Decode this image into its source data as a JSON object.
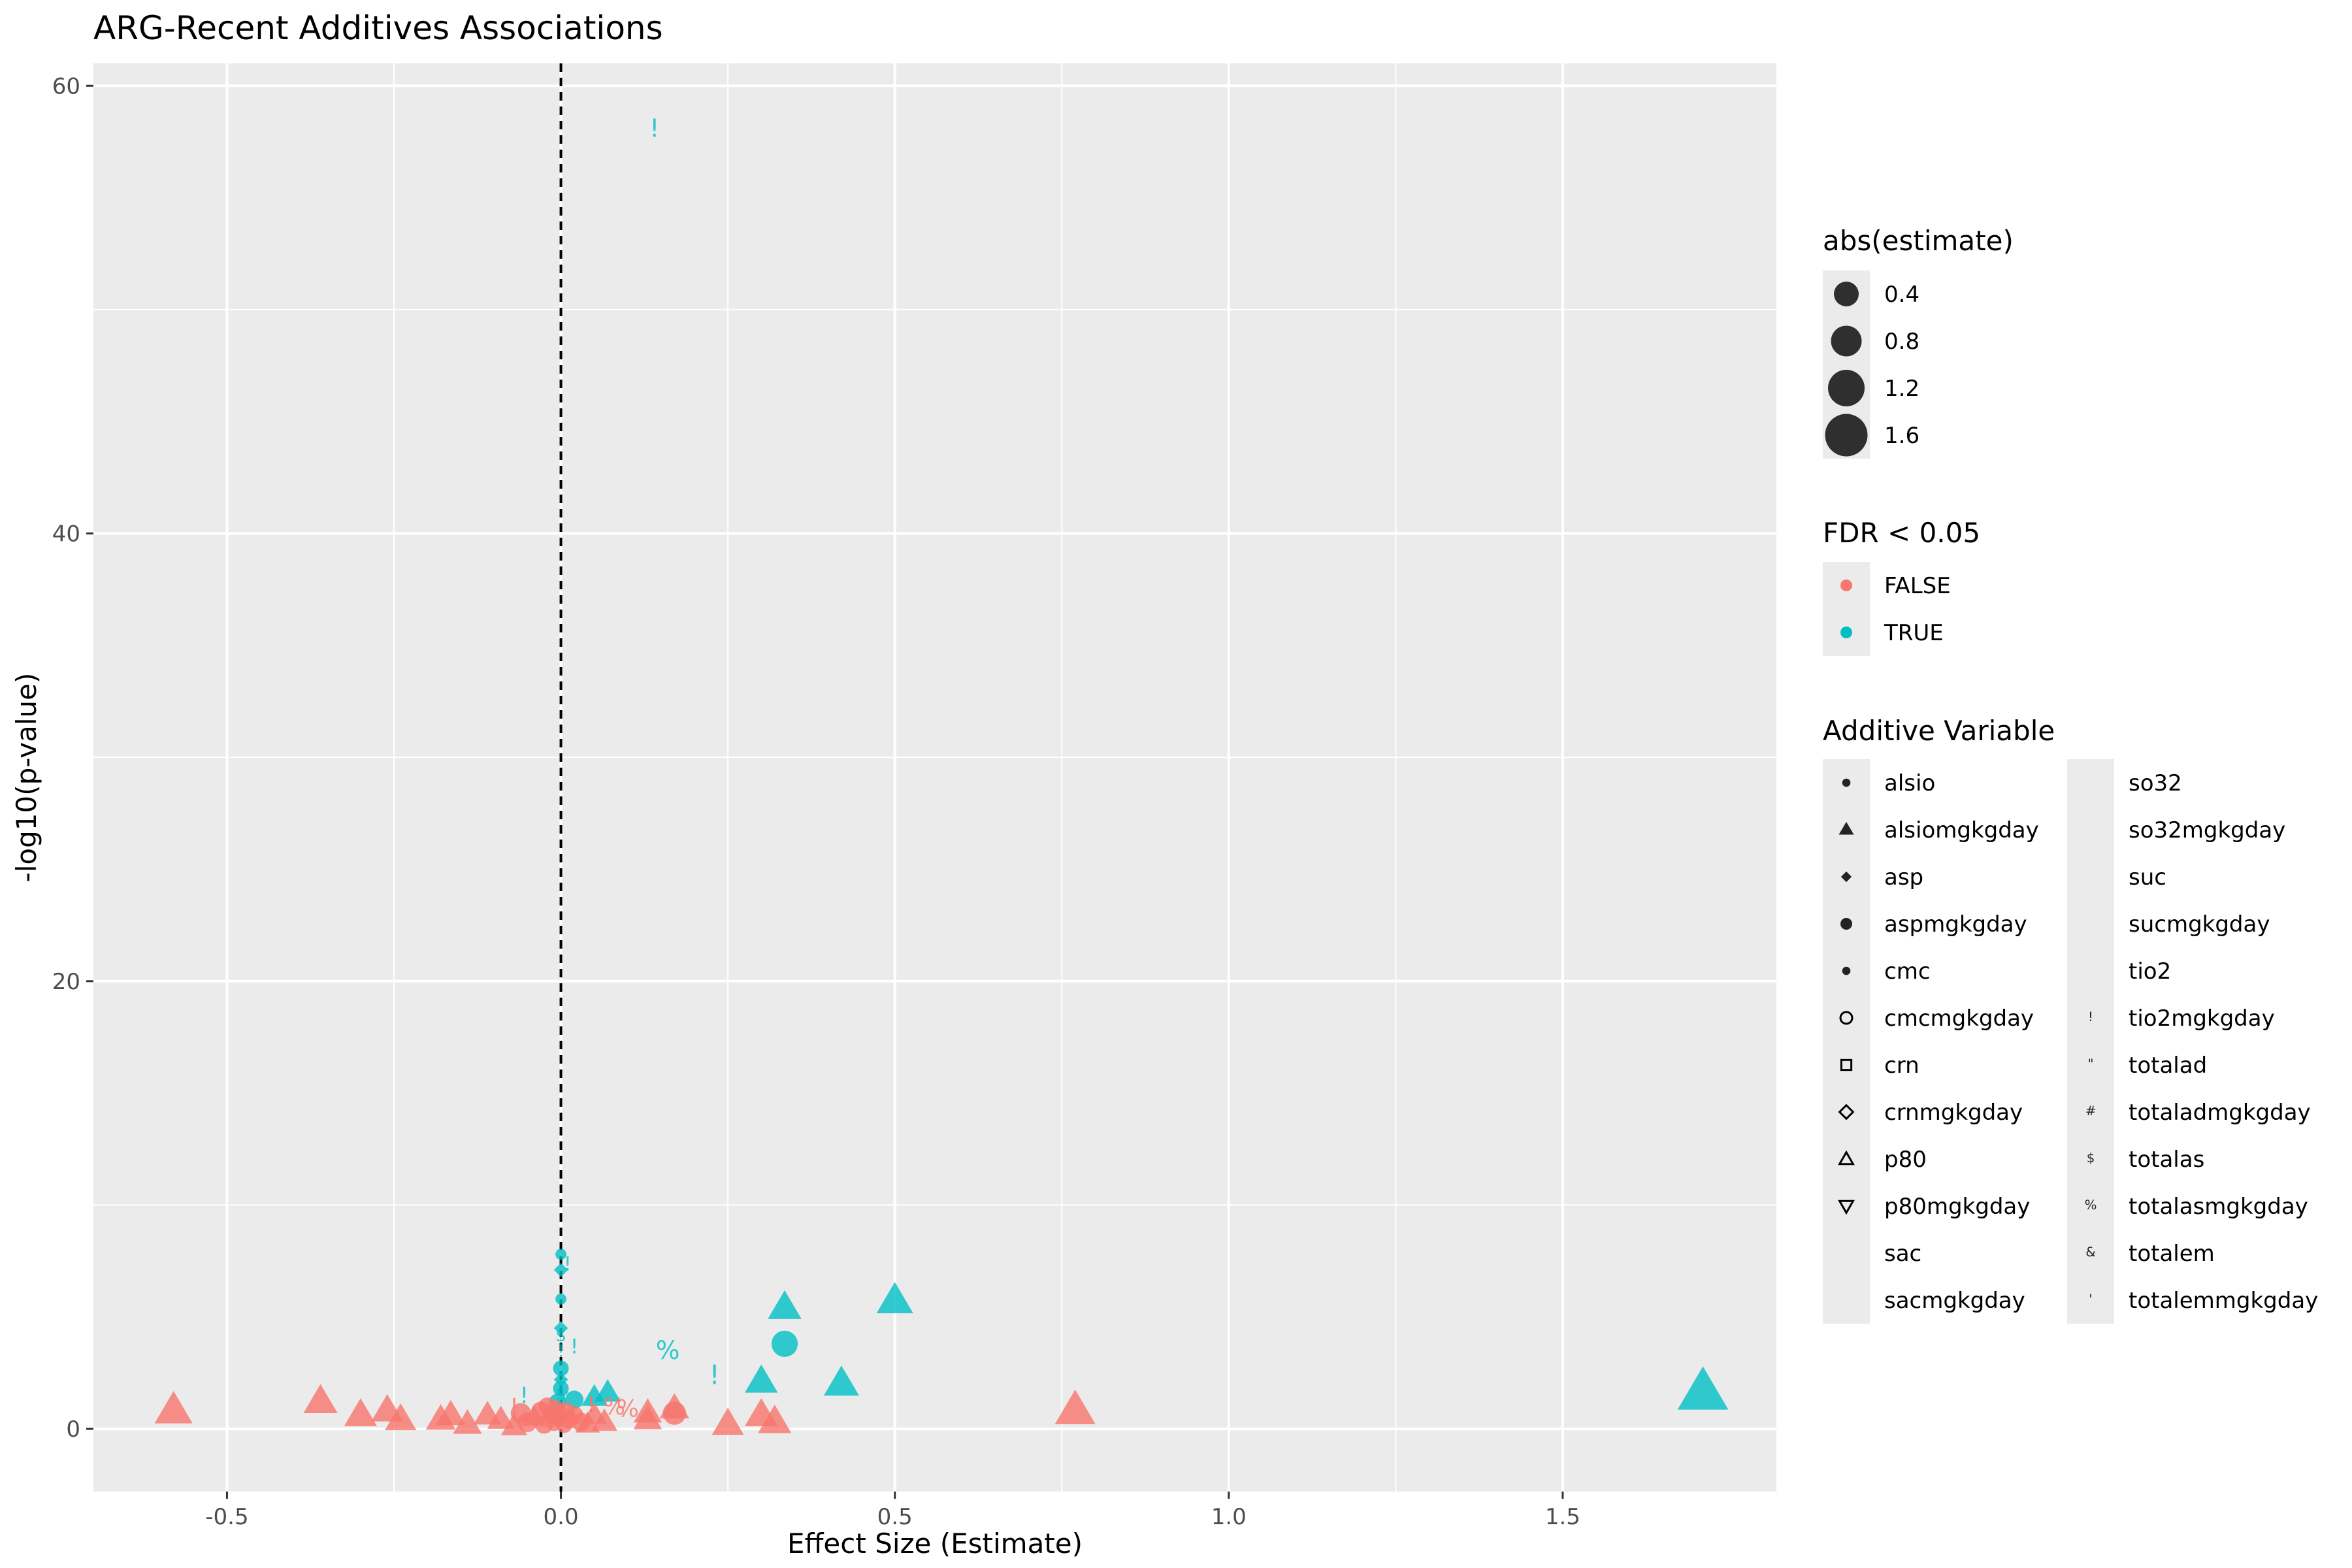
{
  "chart_data": {
    "type": "scatter",
    "title": "ARG-Recent Additives Associations",
    "xlabel": "Effect Size (Estimate)",
    "ylabel": "-log10(p-value)",
    "xlim": [
      -0.7,
      1.82
    ],
    "ylim": [
      -2.8,
      61
    ],
    "x_ticks": [
      -0.5,
      0.0,
      0.5,
      1.0,
      1.5
    ],
    "x_tick_labels": [
      "-0.5",
      "0.0",
      "0.5",
      "1.0",
      "1.5"
    ],
    "y_ticks": [
      0,
      20,
      40,
      60
    ],
    "y_tick_labels": [
      "0",
      "20",
      "40",
      "60"
    ],
    "grid": true,
    "reference_line": {
      "x": 0,
      "style": "dashed"
    },
    "colors": {
      "FALSE": "#F8766D",
      "TRUE": "#00BFC4",
      "panel": "#EBEBEB",
      "grid": "#FFFFFF"
    },
    "legend_position": "right",
    "legends": {
      "size": {
        "title": "abs(estimate)",
        "entries": [
          "0.4",
          "0.8",
          "1.2",
          "1.6"
        ]
      },
      "color": {
        "title": "FDR < 0.05",
        "entries": [
          "FALSE",
          "TRUE"
        ]
      },
      "shape": {
        "title": "Additive Variable",
        "entries": [
          {
            "label": "alsio",
            "symbol": "circle-small"
          },
          {
            "label": "alsiomgkgday",
            "symbol": "triangle"
          },
          {
            "label": "asp",
            "symbol": "diamond"
          },
          {
            "label": "aspmgkgday",
            "symbol": "circle"
          },
          {
            "label": "cmc",
            "symbol": "circle-small"
          },
          {
            "label": "cmcmgkgday",
            "symbol": "circle-open"
          },
          {
            "label": "crn",
            "symbol": "square-open"
          },
          {
            "label": "crnmgkgday",
            "symbol": "diamond-open"
          },
          {
            "label": "p80",
            "symbol": "triangle-open"
          },
          {
            "label": "p80mgkgday",
            "symbol": "triangle-down-open"
          },
          {
            "label": "sac",
            "symbol": "none"
          },
          {
            "label": "sacmgkgday",
            "symbol": "none"
          },
          {
            "label": "so32",
            "symbol": "none"
          },
          {
            "label": "so32mgkgday",
            "symbol": "none"
          },
          {
            "label": "suc",
            "symbol": "none"
          },
          {
            "label": "sucmgkgday",
            "symbol": "none"
          },
          {
            "label": "tio2",
            "symbol": "none"
          },
          {
            "label": "tio2mgkgday",
            "symbol": "!"
          },
          {
            "label": "totalad",
            "symbol": "\""
          },
          {
            "label": "totaladmgkgday",
            "symbol": "#"
          },
          {
            "label": "totalas",
            "symbol": "$"
          },
          {
            "label": "totalasmgkgday",
            "symbol": "%"
          },
          {
            "label": "totalem",
            "symbol": "&"
          },
          {
            "label": "totalemmgkgday",
            "symbol": "'"
          }
        ]
      }
    },
    "points": [
      {
        "x": 0.14,
        "y": 58.0,
        "fdr": "TRUE",
        "shape": "!"
      },
      {
        "x": 1.71,
        "y": 1.6,
        "fdr": "TRUE",
        "shape": "triangle"
      },
      {
        "x": 0.5,
        "y": 5.7,
        "fdr": "TRUE",
        "shape": "triangle"
      },
      {
        "x": 0.335,
        "y": 5.4,
        "fdr": "TRUE",
        "shape": "triangle"
      },
      {
        "x": 0.335,
        "y": 3.8,
        "fdr": "TRUE",
        "shape": "circle"
      },
      {
        "x": 0.42,
        "y": 2.0,
        "fdr": "TRUE",
        "shape": "triangle"
      },
      {
        "x": 0.3,
        "y": 2.1,
        "fdr": "TRUE",
        "shape": "triangle"
      },
      {
        "x": 0.16,
        "y": 3.4,
        "fdr": "TRUE",
        "shape": "%"
      },
      {
        "x": 0.23,
        "y": 2.3,
        "fdr": "TRUE",
        "shape": "!"
      },
      {
        "x": 0.07,
        "y": 1.6,
        "fdr": "TRUE",
        "shape": "triangle"
      },
      {
        "x": 0.05,
        "y": 1.4,
        "fdr": "TRUE",
        "shape": "triangle"
      },
      {
        "x": 0.02,
        "y": 1.3,
        "fdr": "TRUE",
        "shape": "circle"
      },
      {
        "x": 0.02,
        "y": 3.6,
        "fdr": "TRUE",
        "shape": "!"
      },
      {
        "x": 0.01,
        "y": 7.3,
        "fdr": "TRUE",
        "shape": "!"
      },
      {
        "x": 0.0,
        "y": 7.8,
        "fdr": "TRUE",
        "shape": "circle-small"
      },
      {
        "x": 0.0,
        "y": 7.1,
        "fdr": "TRUE",
        "shape": "diamond"
      },
      {
        "x": 0.0,
        "y": 5.8,
        "fdr": "TRUE",
        "shape": "circle-small"
      },
      {
        "x": 0.0,
        "y": 4.5,
        "fdr": "TRUE",
        "shape": "diamond"
      },
      {
        "x": 0.0,
        "y": 4.1,
        "fdr": "TRUE",
        "shape": "$"
      },
      {
        "x": 0.0,
        "y": 3.4,
        "fdr": "TRUE",
        "shape": "!"
      },
      {
        "x": 0.0,
        "y": 2.7,
        "fdr": "TRUE",
        "shape": "circle"
      },
      {
        "x": 0.0,
        "y": 2.2,
        "fdr": "TRUE",
        "shape": "diamond"
      },
      {
        "x": 0.0,
        "y": 1.8,
        "fdr": "TRUE",
        "shape": "circle"
      },
      {
        "x": 0.0,
        "y": 1.5,
        "fdr": "TRUE",
        "shape": "$"
      },
      {
        "x": -0.005,
        "y": 1.2,
        "fdr": "TRUE",
        "shape": "circle"
      },
      {
        "x": -0.055,
        "y": 1.4,
        "fdr": "TRUE",
        "shape": "!"
      },
      {
        "x": -0.58,
        "y": 0.8,
        "fdr": "FALSE",
        "shape": "triangle"
      },
      {
        "x": -0.36,
        "y": 1.2,
        "fdr": "FALSE",
        "shape": "triangle"
      },
      {
        "x": -0.3,
        "y": 0.6,
        "fdr": "FALSE",
        "shape": "triangle"
      },
      {
        "x": -0.26,
        "y": 0.8,
        "fdr": "FALSE",
        "shape": "triangle"
      },
      {
        "x": -0.24,
        "y": 0.4,
        "fdr": "FALSE",
        "shape": "triangle"
      },
      {
        "x": -0.18,
        "y": 0.4,
        "fdr": "FALSE",
        "shape": "triangle"
      },
      {
        "x": -0.165,
        "y": 0.6,
        "fdr": "FALSE",
        "shape": "triangle"
      },
      {
        "x": -0.14,
        "y": 0.2,
        "fdr": "FALSE",
        "shape": "triangle"
      },
      {
        "x": -0.11,
        "y": 0.6,
        "fdr": "FALSE",
        "shape": "triangle"
      },
      {
        "x": -0.09,
        "y": 0.4,
        "fdr": "FALSE",
        "shape": "triangle"
      },
      {
        "x": -0.07,
        "y": 0.1,
        "fdr": "FALSE",
        "shape": "triangle"
      },
      {
        "x": -0.06,
        "y": 0.7,
        "fdr": "FALSE",
        "shape": "circle"
      },
      {
        "x": -0.05,
        "y": 0.3,
        "fdr": "FALSE",
        "shape": "circle"
      },
      {
        "x": -0.04,
        "y": 0.5,
        "fdr": "FALSE",
        "shape": "triangle"
      },
      {
        "x": -0.03,
        "y": 0.8,
        "fdr": "FALSE",
        "shape": "circle"
      },
      {
        "x": -0.025,
        "y": 0.2,
        "fdr": "FALSE",
        "shape": "circle"
      },
      {
        "x": -0.02,
        "y": 1.0,
        "fdr": "FALSE",
        "shape": "circle"
      },
      {
        "x": -0.015,
        "y": 0.6,
        "fdr": "FALSE",
        "shape": "circle"
      },
      {
        "x": -0.01,
        "y": 0.3,
        "fdr": "FALSE",
        "shape": "circle"
      },
      {
        "x": -0.008,
        "y": 0.9,
        "fdr": "FALSE",
        "shape": "circle"
      },
      {
        "x": -0.005,
        "y": 0.5,
        "fdr": "FALSE",
        "shape": "circle"
      },
      {
        "x": 0.0,
        "y": 0.7,
        "fdr": "FALSE",
        "shape": "circle"
      },
      {
        "x": 0.005,
        "y": 0.2,
        "fdr": "FALSE",
        "shape": "circle"
      },
      {
        "x": 0.008,
        "y": 0.8,
        "fdr": "FALSE",
        "shape": "circle"
      },
      {
        "x": 0.012,
        "y": 0.4,
        "fdr": "FALSE",
        "shape": "circle"
      },
      {
        "x": 0.02,
        "y": 0.6,
        "fdr": "FALSE",
        "shape": "circle"
      },
      {
        "x": 0.03,
        "y": 0.3,
        "fdr": "FALSE",
        "shape": "circle"
      },
      {
        "x": 0.04,
        "y": 0.2,
        "fdr": "FALSE",
        "shape": "triangle"
      },
      {
        "x": 0.05,
        "y": 0.6,
        "fdr": "FALSE",
        "shape": "triangle"
      },
      {
        "x": 0.065,
        "y": 0.3,
        "fdr": "FALSE",
        "shape": "triangle"
      },
      {
        "x": 0.08,
        "y": 0.9,
        "fdr": "FALSE",
        "shape": "%"
      },
      {
        "x": 0.1,
        "y": 0.8,
        "fdr": "FALSE",
        "shape": "%"
      },
      {
        "x": 0.13,
        "y": 0.7,
        "fdr": "FALSE",
        "shape": "triangle"
      },
      {
        "x": 0.13,
        "y": 0.4,
        "fdr": "FALSE",
        "shape": "triangle"
      },
      {
        "x": 0.17,
        "y": 0.9,
        "fdr": "FALSE",
        "shape": "triangle"
      },
      {
        "x": 0.17,
        "y": 0.7,
        "fdr": "FALSE",
        "shape": "circle"
      },
      {
        "x": 0.25,
        "y": 0.2,
        "fdr": "FALSE",
        "shape": "triangle"
      },
      {
        "x": 0.3,
        "y": 0.6,
        "fdr": "FALSE",
        "shape": "triangle"
      },
      {
        "x": 0.32,
        "y": 0.3,
        "fdr": "FALSE",
        "shape": "triangle"
      },
      {
        "x": 0.77,
        "y": 0.8,
        "fdr": "FALSE",
        "shape": "triangle"
      },
      {
        "x": -0.07,
        "y": 0.9,
        "fdr": "FALSE",
        "shape": "!"
      },
      {
        "x": 0.045,
        "y": 1.0,
        "fdr": "FALSE",
        "shape": "!"
      }
    ]
  }
}
